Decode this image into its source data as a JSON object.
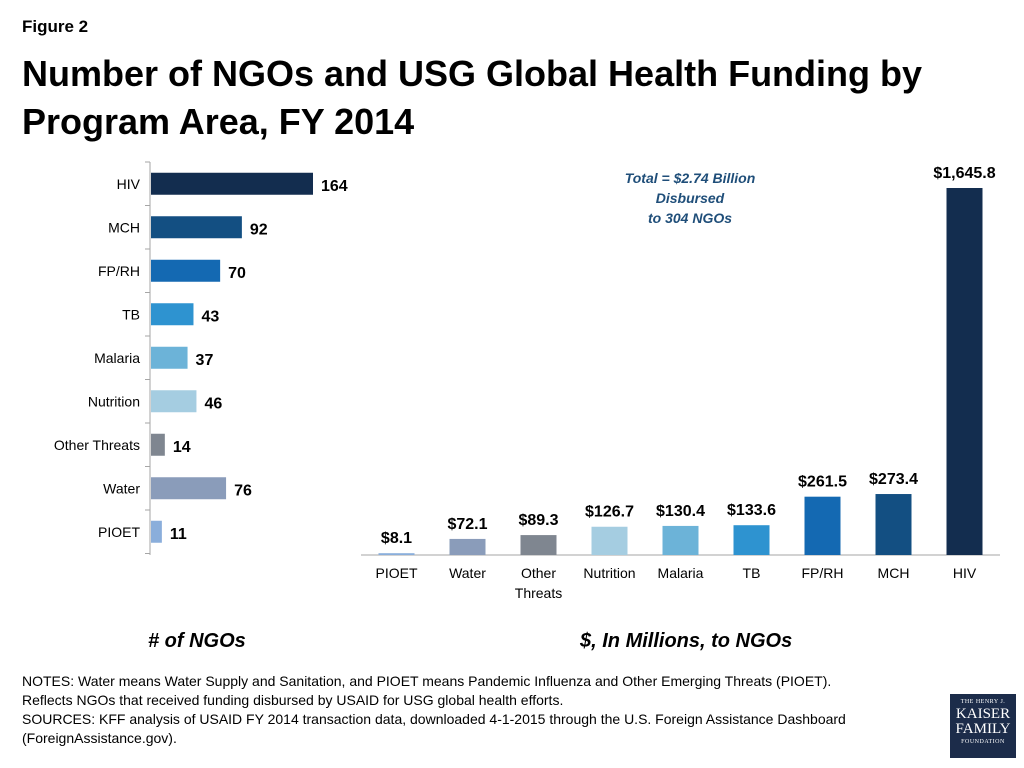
{
  "figure_label": "Figure 2",
  "title": "Number of NGOs and USG Global Health Funding by Program Area, FY 2014",
  "total_note": [
    "Total = $2.74 Billion",
    "Disbursed",
    "to 304 NGOs"
  ],
  "chart_data": [
    {
      "type": "bar",
      "orientation": "horizontal",
      "categories": [
        "HIV",
        "MCH",
        "FP/RH",
        "TB",
        "Malaria",
        "Nutrition",
        "Other Threats",
        "Water",
        "PIOET"
      ],
      "values": [
        164,
        92,
        70,
        43,
        37,
        46,
        14,
        76,
        11
      ],
      "value_labels": [
        "164",
        "92",
        "70",
        "43",
        "37",
        "46",
        "14",
        "76",
        "11"
      ],
      "colors": [
        "#132d4f",
        "#134f82",
        "#1469b2",
        "#2e93d0",
        "#6cb3d8",
        "#a5cde1",
        "#7f8690",
        "#8a9cba",
        "#8aaedb"
      ],
      "xlabel": "# of NGOs",
      "xlim": [
        0,
        164
      ],
      "grid": false
    },
    {
      "type": "bar",
      "orientation": "vertical",
      "categories": [
        "PIOET",
        "Water",
        "Other Threats",
        "Nutrition",
        "Malaria",
        "TB",
        "FP/RH",
        "MCH",
        "HIV"
      ],
      "category_labels": [
        [
          "PIOET"
        ],
        [
          "Water"
        ],
        [
          "Other",
          "Threats"
        ],
        [
          "Nutrition"
        ],
        [
          "Malaria"
        ],
        [
          "TB"
        ],
        [
          "FP/RH"
        ],
        [
          "MCH"
        ],
        [
          "HIV"
        ]
      ],
      "values": [
        8.1,
        72.1,
        89.3,
        126.7,
        130.4,
        133.6,
        261.5,
        273.4,
        1645.8
      ],
      "value_labels": [
        "$8.1",
        "$72.1",
        "$89.3",
        "$126.7",
        "$130.4",
        "$133.6",
        "$261.5",
        "$273.4",
        "$1,645.8"
      ],
      "colors": [
        "#8aaedb",
        "#8a9cba",
        "#7f8690",
        "#a5cde1",
        "#6cb3d8",
        "#2e93d0",
        "#1469b2",
        "#134f82",
        "#132d4f"
      ],
      "xlabel": "$, In Millions, to NGOs",
      "ylim": [
        0,
        1645.8
      ],
      "grid": false
    }
  ],
  "notes": [
    "NOTES: Water means Water Supply and Sanitation, and PIOET means Pandemic Influenza and Other Emerging Threats (PIOET).",
    "Reflects NGOs that received funding disbursed by USAID for USG global health efforts.",
    "SOURCES: KFF analysis of  USAID FY 2014 transaction data, downloaded 4-1-2015 through the U.S. Foreign Assistance Dashboard",
    "(ForeignAssistance.gov)."
  ],
  "logo": {
    "line1": "THE HENRY J.",
    "line2": "KAISER",
    "line3": "FAMILY",
    "line4": "FOUNDATION"
  }
}
